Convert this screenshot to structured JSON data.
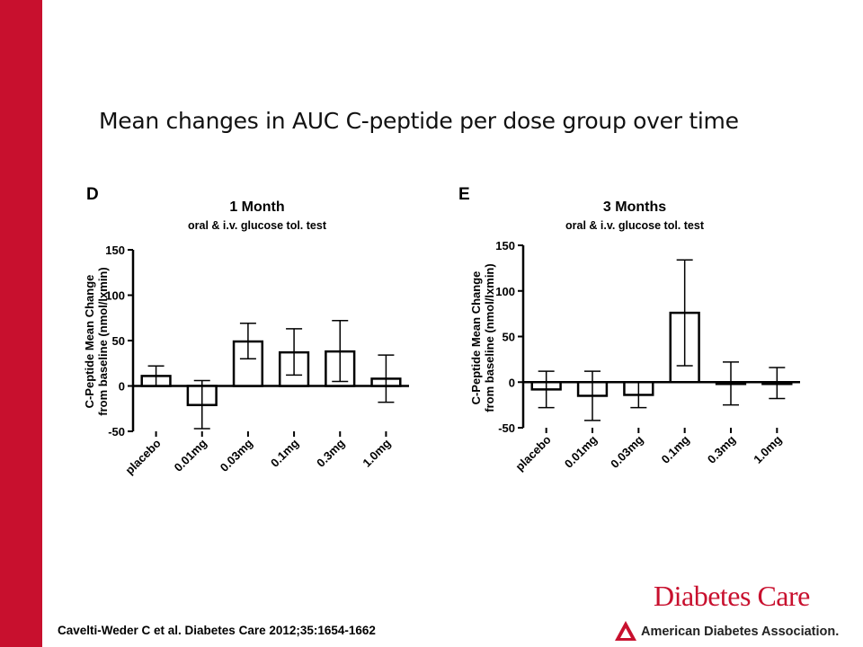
{
  "slide": {
    "title": "Mean changes in AUC C-peptide per dose group over time",
    "citation": "Cavelti-Weder C et al. Diabetes Care 2012;35:1654-1662",
    "journal_logo": "Diabetes Care",
    "association": "American Diabetes Association.",
    "accent_color": "#c8102e"
  },
  "chart_data": [
    {
      "type": "bar",
      "panel": "D",
      "title": "1 Month",
      "subtitle": "oral & i.v. glucose tol. test",
      "ylabel_line1": "C-Peptide Mean Change",
      "ylabel_line2": "from baseline (nmol/lxmin)",
      "categories": [
        "placebo",
        "0.01mg",
        "0.03mg",
        "0.1mg",
        "0.3mg",
        "1.0mg"
      ],
      "values": [
        11,
        -21,
        49,
        37,
        38,
        8
      ],
      "error_upper": [
        22,
        6,
        69,
        63,
        72,
        34
      ],
      "error_lower": [
        0,
        -47,
        30,
        12,
        5,
        -18
      ],
      "ylim": [
        -50,
        150
      ],
      "yticks": [
        -50,
        0,
        50,
        100,
        150
      ],
      "grid": false
    },
    {
      "type": "bar",
      "panel": "E",
      "title": "3 Months",
      "subtitle": "oral & i.v. glucose tol. test",
      "ylabel_line1": "C-Peptide Mean Change",
      "ylabel_line2": "from baseline (nmol/lxmin)",
      "categories": [
        "placebo",
        "0.01mg",
        "0.03mg",
        "0.1mg",
        "0.3mg",
        "1.0mg"
      ],
      "values": [
        -8,
        -15,
        -14,
        76,
        -2,
        -2
      ],
      "error_upper": [
        12,
        12,
        0,
        134,
        22,
        16
      ],
      "error_lower": [
        -28,
        -42,
        -28,
        18,
        -25,
        -18
      ],
      "ylim": [
        -50,
        150
      ],
      "yticks": [
        -50,
        0,
        50,
        100,
        150
      ],
      "grid": false
    }
  ]
}
